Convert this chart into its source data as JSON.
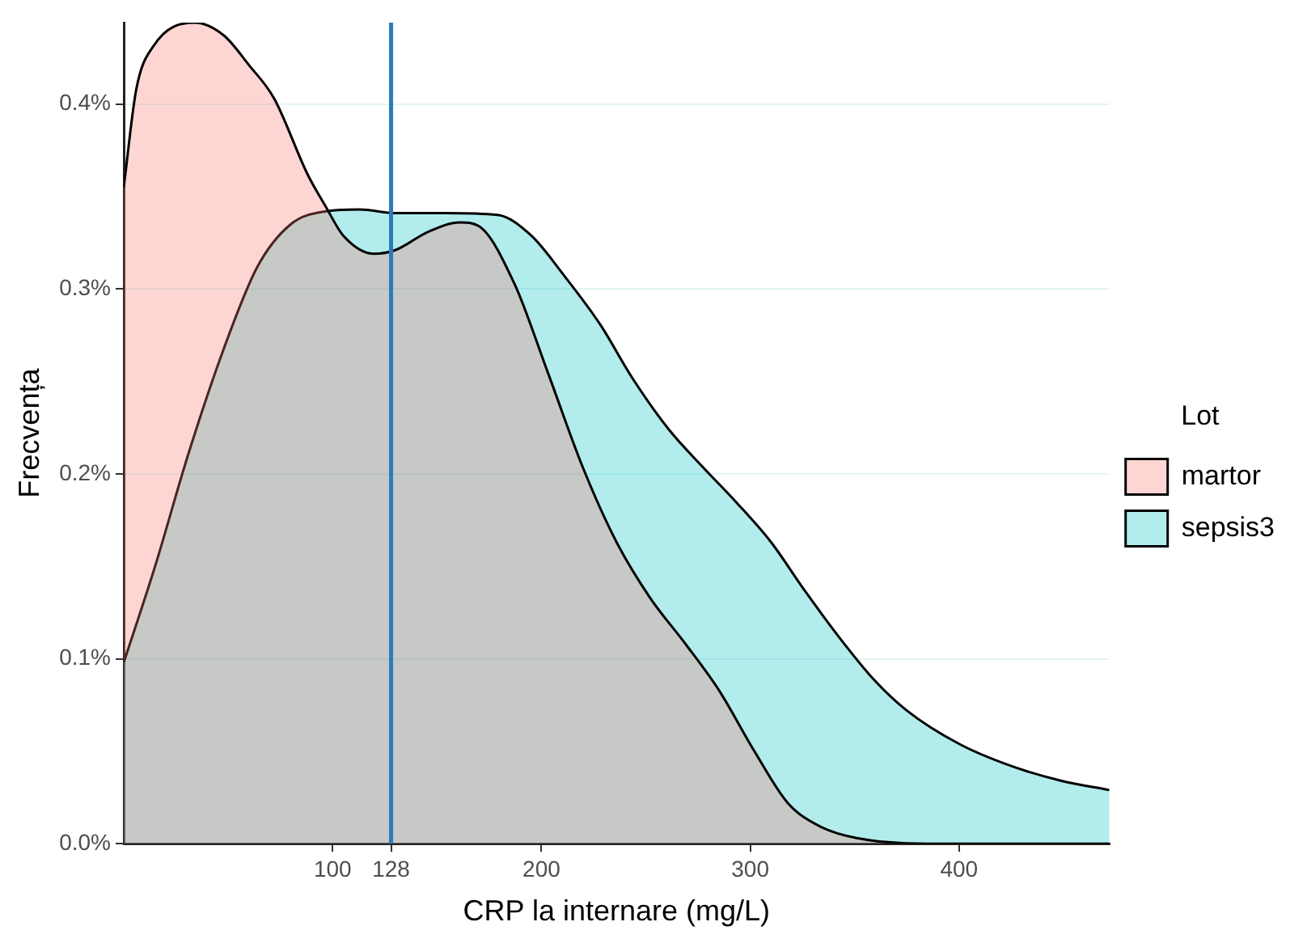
{
  "chart_data": {
    "type": "area",
    "xlabel": "CRP la internare (mg/L)",
    "ylabel": "Frecvența",
    "legend_title": "Lot",
    "legend": "right",
    "grid": "y",
    "xlim": [
      0,
      472
    ],
    "xticks": [
      100,
      128,
      200,
      300,
      400
    ],
    "ylim": [
      0,
      0.444
    ],
    "yticks": [
      {
        "value": 0,
        "label": "0.0%"
      },
      {
        "value": 0.1,
        "label": "0.1%"
      },
      {
        "value": 0.2,
        "label": "0.2%"
      },
      {
        "value": 0.3,
        "label": "0.3%"
      },
      {
        "value": 0.4,
        "label": "0.4%"
      }
    ],
    "ref_lines": [
      {
        "axis": "x",
        "value": 128,
        "color": "#2b7bba"
      }
    ],
    "series": [
      {
        "name": "martor",
        "color": "#f8766d",
        "x": [
          0,
          6,
          14,
          34,
          48,
          60,
          72,
          88,
          97,
          105,
          120,
          130,
          146,
          161,
          170,
          187,
          203,
          220,
          236,
          252,
          269,
          285,
          302,
          318,
          334,
          351,
          384,
          472
        ],
        "values": [
          0.355,
          0.408,
          0.431,
          0.444,
          0.437,
          0.421,
          0.403,
          0.362,
          0.344,
          0.329,
          0.319,
          0.321,
          0.331,
          0.336,
          0.334,
          0.303,
          0.255,
          0.203,
          0.163,
          0.133,
          0.108,
          0.083,
          0.05,
          0.022,
          0.009,
          0.003,
          0,
          0
        ]
      },
      {
        "name": "sepsis3",
        "color": "#00bfc4",
        "x": [
          0,
          15,
          31,
          48,
          64,
          80,
          97,
          113,
          130,
          154,
          179,
          195,
          211,
          228,
          244,
          261,
          277,
          293,
          310,
          326,
          343,
          359,
          375,
          400,
          425,
          449,
          472
        ],
        "values": [
          0.098,
          0.15,
          0.211,
          0.268,
          0.312,
          0.335,
          0.342,
          0.343,
          0.341,
          0.341,
          0.34,
          0.329,
          0.307,
          0.281,
          0.251,
          0.224,
          0.204,
          0.185,
          0.163,
          0.137,
          0.111,
          0.089,
          0.072,
          0.054,
          0.042,
          0.034,
          0.029
        ]
      }
    ]
  }
}
